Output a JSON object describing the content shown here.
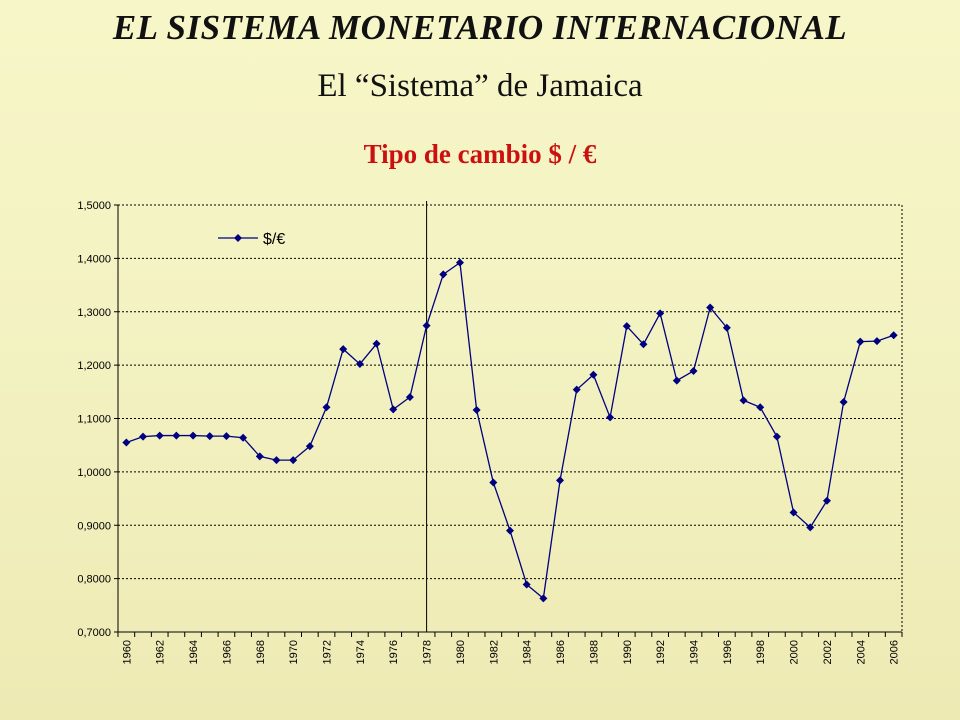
{
  "header": {
    "title": "EL SISTEMA MONETARIO INTERNACIONAL",
    "subtitle": "El “Sistema” de Jamaica"
  },
  "colors": {
    "series": "#000080",
    "grid": "#000000",
    "title_red": "#cc1010"
  },
  "chart_data": {
    "type": "line",
    "title": "Tipo de cambio $ / €",
    "xlabel": "",
    "ylabel": "",
    "ylim": [
      0.7,
      1.5
    ],
    "y_ticks": [
      "0,7000",
      "0,8000",
      "0,9000",
      "1,0000",
      "1,1000",
      "1,2000",
      "1,3000",
      "1,4000",
      "1,5000"
    ],
    "x_tick_labels": [
      "1960",
      "1962",
      "1964",
      "1966",
      "1968",
      "1970",
      "1972",
      "1974",
      "1976",
      "1978",
      "1980",
      "1982",
      "1984",
      "1986",
      "1988",
      "1990",
      "1992",
      "1994",
      "1996",
      "1998",
      "2000",
      "2002",
      "2004",
      "2006"
    ],
    "grid": "horizontal dashed",
    "legend_placement": "top-left",
    "marker": "diamond",
    "reference_line_x": 1978,
    "x": [
      1960,
      1961,
      1962,
      1963,
      1964,
      1965,
      1966,
      1967,
      1968,
      1969,
      1970,
      1971,
      1972,
      1973,
      1974,
      1975,
      1976,
      1977,
      1978,
      1979,
      1980,
      1981,
      1982,
      1983,
      1984,
      1985,
      1986,
      1987,
      1988,
      1989,
      1990,
      1991,
      1992,
      1993,
      1994,
      1995,
      1996,
      1997,
      1998,
      1999,
      2000,
      2001,
      2002,
      2003,
      2004,
      2005,
      2006
    ],
    "series": [
      {
        "name": "$/€",
        "values": [
          1.055,
          1.066,
          1.068,
          1.068,
          1.068,
          1.067,
          1.067,
          1.064,
          1.029,
          1.022,
          1.022,
          1.048,
          1.121,
          1.23,
          1.202,
          1.24,
          1.117,
          1.14,
          1.274,
          1.37,
          1.392,
          1.116,
          0.98,
          0.89,
          0.789,
          0.763,
          0.984,
          1.154,
          1.182,
          1.102,
          1.273,
          1.239,
          1.297,
          1.171,
          1.189,
          1.308,
          1.27,
          1.134,
          1.121,
          1.066,
          0.924,
          0.896,
          0.946,
          1.131,
          1.244,
          1.245,
          1.256
        ]
      }
    ]
  }
}
